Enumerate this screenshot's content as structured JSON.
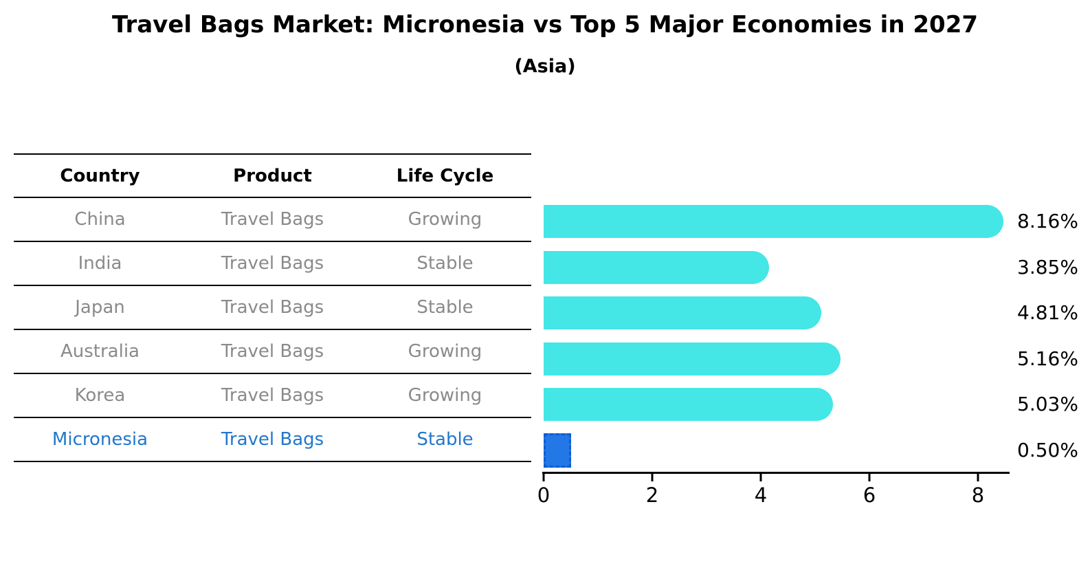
{
  "chart_data": {
    "type": "bar",
    "orientation": "horizontal",
    "title": "Travel Bags Market: Micronesia vs Top 5 Major Economies in 2027",
    "subtitle": "(Asia)",
    "categories": [
      "China",
      "India",
      "Japan",
      "Australia",
      "Korea",
      "Micronesia"
    ],
    "values": [
      8.16,
      3.85,
      4.81,
      5.16,
      5.03,
      0.5
    ],
    "value_labels": [
      "8.16%",
      "3.85%",
      "4.81%",
      "5.16%",
      "5.03%",
      "0.50%"
    ],
    "x_ticks": [
      "0",
      "2",
      "4",
      "6",
      "8"
    ],
    "xlim": [
      0,
      8.6
    ],
    "grid": false,
    "legend": "none",
    "bar_color": "#44e6e6",
    "highlight_bar_color": "#2378e6",
    "highlight_bar_border_color": "#0c5ed4",
    "highlight_index": 5
  },
  "table": {
    "headers": [
      "Country",
      "Product",
      "Life Cycle"
    ],
    "rows": [
      {
        "country": "China",
        "product": "Travel Bags",
        "life_cycle": "Growing",
        "highlight": false
      },
      {
        "country": "India",
        "product": "Travel Bags",
        "life_cycle": "Stable",
        "highlight": false
      },
      {
        "country": "Japan",
        "product": "Travel Bags",
        "life_cycle": "Stable",
        "highlight": false
      },
      {
        "country": "Australia",
        "product": "Travel Bags",
        "life_cycle": "Growing",
        "highlight": false
      },
      {
        "country": "Korea",
        "product": "Travel Bags",
        "life_cycle": "Growing",
        "highlight": false
      },
      {
        "country": "Micronesia",
        "product": "Travel Bags",
        "life_cycle": "Stable",
        "highlight": true
      }
    ],
    "text_color": "#8a8a8a",
    "highlight_text_color": "#2277cb"
  }
}
